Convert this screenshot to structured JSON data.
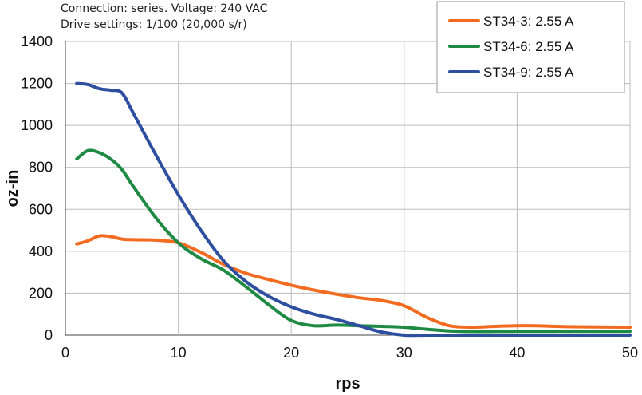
{
  "notes": {
    "line1": "Connection: series. Voltage: 240 VAC",
    "line2": "Drive settings: 1/100 (20,000 s/r)"
  },
  "chart_data": {
    "type": "line",
    "title": "",
    "xlabel": "rps",
    "ylabel": "oz-in",
    "xlim": [
      0,
      50
    ],
    "ylim": [
      0,
      1400
    ],
    "xticks": [
      0,
      10,
      20,
      30,
      40,
      50
    ],
    "yticks": [
      0,
      200,
      400,
      600,
      800,
      1000,
      1200,
      1400
    ],
    "grid": true,
    "legend_position": "top-right",
    "series": [
      {
        "name": "ST34-3: 2.55 A",
        "color": "#f26b21",
        "x": [
          1,
          2,
          3,
          4,
          5,
          6,
          8,
          10,
          12,
          14,
          16,
          18,
          20,
          22,
          24,
          26,
          28,
          30,
          32,
          34,
          36,
          38,
          40,
          42,
          45,
          50
        ],
        "y": [
          435,
          450,
          473,
          470,
          458,
          455,
          453,
          440,
          395,
          338,
          295,
          265,
          238,
          215,
          195,
          178,
          165,
          140,
          85,
          45,
          38,
          42,
          45,
          44,
          40,
          38
        ]
      },
      {
        "name": "ST34-6: 2.55 A",
        "color": "#1e8a44",
        "x": [
          1,
          2,
          3,
          4,
          5,
          6,
          8,
          10,
          12,
          14,
          16,
          18,
          20,
          22,
          24,
          26,
          28,
          30,
          32,
          35,
          40,
          45,
          50
        ],
        "y": [
          840,
          880,
          870,
          840,
          790,
          710,
          560,
          440,
          365,
          310,
          230,
          145,
          70,
          45,
          48,
          45,
          42,
          38,
          28,
          18,
          18,
          18,
          18
        ]
      },
      {
        "name": "ST34-9: 2.55 A",
        "color": "#2e4fa0",
        "x": [
          1,
          2,
          3,
          4,
          5,
          6,
          8,
          10,
          12,
          14,
          16,
          18,
          20,
          22,
          24,
          26,
          28,
          30,
          32,
          35,
          40,
          45,
          50
        ],
        "y": [
          1200,
          1195,
          1175,
          1168,
          1155,
          1060,
          860,
          670,
          500,
          355,
          255,
          185,
          135,
          100,
          75,
          45,
          15,
          0,
          0,
          0,
          0,
          0,
          0
        ]
      }
    ]
  }
}
